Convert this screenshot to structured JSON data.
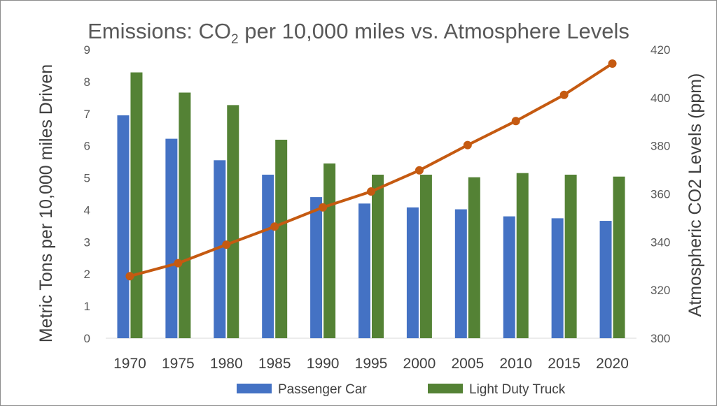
{
  "chart_data": {
    "type": "bar",
    "title": {
      "main": "Emissions: CO",
      "subscript": "2",
      "rest": " per 10,000 miles vs. Atmosphere Levels"
    },
    "categories": [
      "1970",
      "1975",
      "1980",
      "1985",
      "1990",
      "1995",
      "2000",
      "2005",
      "2010",
      "2015",
      "2020"
    ],
    "ylabel": "Metric Tons per 10,000 miles Driven",
    "ylim": [
      0,
      9
    ],
    "yticks": [
      "0",
      "1",
      "2",
      "3",
      "4",
      "5",
      "6",
      "7",
      "8",
      "9"
    ],
    "y2label": "Atmospheric CO2 Levels (ppm)",
    "y2lim": [
      300,
      420
    ],
    "y2ticks": [
      "300",
      "320",
      "340",
      "360",
      "380",
      "400",
      "420"
    ],
    "grid": false,
    "legend_position": "bottom",
    "series": [
      {
        "name": "Passenger Car",
        "type": "bar",
        "axis": "left",
        "color": "#4472c4",
        "values": [
          6.95,
          6.22,
          5.55,
          5.1,
          4.4,
          4.2,
          4.08,
          4.02,
          3.8,
          3.74,
          3.66
        ]
      },
      {
        "name": "Light Duty Truck",
        "type": "bar",
        "axis": "left",
        "color": "#548235",
        "values": [
          8.29,
          7.66,
          7.27,
          6.19,
          5.45,
          5.1,
          5.1,
          5.02,
          5.15,
          5.1,
          5.04
        ]
      },
      {
        "type": "line",
        "axis": "right",
        "color": "#c55a11",
        "marker": "circle",
        "values": [
          325.8,
          331.2,
          338.9,
          346.4,
          354.4,
          361.0,
          369.8,
          380.3,
          390.3,
          401.2,
          414.2
        ]
      }
    ]
  }
}
